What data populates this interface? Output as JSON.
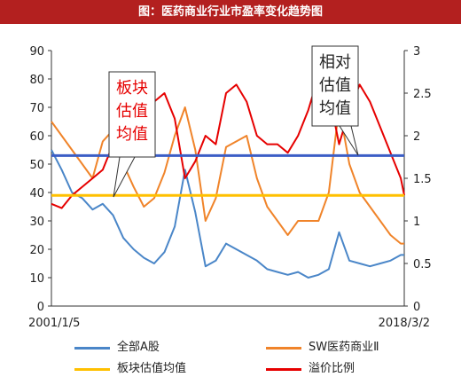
{
  "header": {
    "title": "图：医药商业行业市盈率变化趋势图"
  },
  "chart_data": {
    "type": "line",
    "x_start_label": "2001/1/5",
    "x_end_label": "2018/3/2",
    "left_axis": {
      "ticks": [
        "0",
        "10",
        "20",
        "30",
        "40",
        "50",
        "60",
        "70",
        "80",
        "90"
      ],
      "ylim": [
        0,
        90
      ]
    },
    "right_axis": {
      "ticks": [
        "0",
        "0.5",
        "1",
        "1.5",
        "2",
        "2.5",
        "3"
      ],
      "ylim": [
        0,
        3
      ]
    },
    "x": [
      2001.0,
      2001.5,
      2002.0,
      2002.5,
      2003.0,
      2003.5,
      2004.0,
      2004.5,
      2005.0,
      2005.5,
      2006.0,
      2006.5,
      2007.0,
      2007.5,
      2008.0,
      2008.5,
      2009.0,
      2009.5,
      2010.0,
      2010.5,
      2011.0,
      2011.5,
      2012.0,
      2012.5,
      2013.0,
      2013.5,
      2014.0,
      2014.5,
      2015.0,
      2015.5,
      2016.0,
      2016.5,
      2017.0,
      2017.5,
      2018.0,
      2018.17
    ],
    "series": [
      {
        "name": "全部A股",
        "axis": "left",
        "color": "#4a86c8",
        "values": [
          55,
          48,
          40,
          38,
          34,
          36,
          32,
          24,
          20,
          17,
          15,
          19,
          28,
          48,
          33,
          14,
          16,
          22,
          20,
          18,
          16,
          13,
          12,
          11,
          12,
          10,
          11,
          13,
          26,
          16,
          15,
          14,
          15,
          16,
          18,
          18
        ]
      },
      {
        "name": "SW医药商业Ⅱ",
        "axis": "left",
        "color": "#f0842a",
        "values": [
          65,
          60,
          55,
          50,
          45,
          58,
          62,
          50,
          42,
          35,
          38,
          47,
          60,
          70,
          55,
          30,
          38,
          56,
          58,
          60,
          45,
          35,
          30,
          25,
          30,
          30,
          30,
          40,
          70,
          50,
          40,
          35,
          30,
          25,
          22,
          22
        ]
      },
      {
        "name": "板块估值均值",
        "axis": "left",
        "color": "#ffc000",
        "values": [
          39,
          39,
          39,
          39,
          39,
          39,
          39,
          39,
          39,
          39,
          39,
          39,
          39,
          39,
          39,
          39,
          39,
          39,
          39,
          39,
          39,
          39,
          39,
          39,
          39,
          39,
          39,
          39,
          39,
          39,
          39,
          39,
          39,
          39,
          39,
          39
        ]
      },
      {
        "name": "溢价比例",
        "axis": "right",
        "color": "#e60000",
        "values": [
          1.2,
          1.15,
          1.3,
          1.4,
          1.5,
          1.6,
          1.9,
          2.1,
          2.0,
          2.1,
          2.4,
          2.5,
          2.2,
          1.5,
          1.7,
          2.0,
          1.9,
          2.5,
          2.6,
          2.4,
          2.0,
          1.9,
          1.9,
          1.8,
          2.0,
          2.3,
          2.7,
          2.5,
          1.9,
          2.3,
          2.6,
          2.4,
          2.1,
          1.8,
          1.5,
          1.3
        ]
      }
    ],
    "annotations": [
      {
        "label_lines": [
          "板块",
          "估值",
          "均值"
        ],
        "color": "#e60000"
      },
      {
        "label_lines": [
          "相对",
          "估值",
          "均值"
        ],
        "color": "#222222"
      }
    ]
  },
  "legend": [
    {
      "label": "全部A股",
      "color": "#4a86c8"
    },
    {
      "label": "SW医药商业Ⅱ",
      "color": "#f0842a"
    },
    {
      "label": "板块估值均值",
      "color": "#ffc000"
    },
    {
      "label": "溢价比例",
      "color": "#e60000"
    }
  ]
}
